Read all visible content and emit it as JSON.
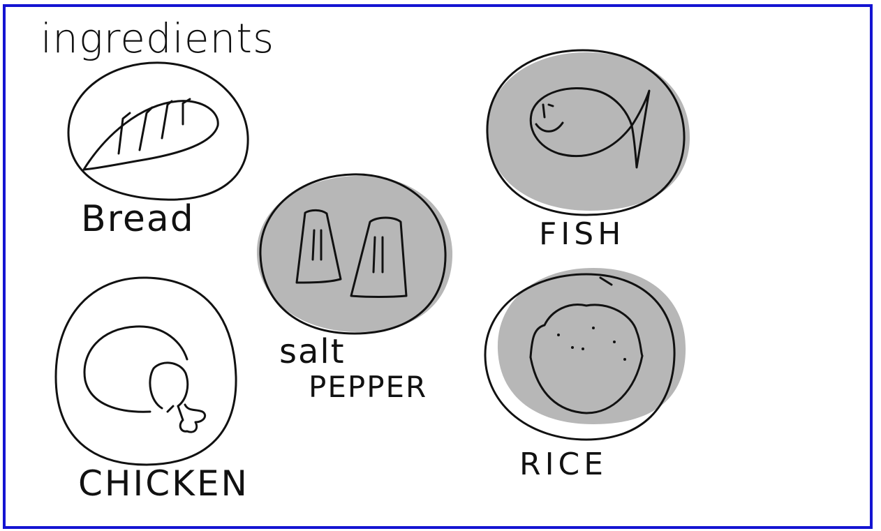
{
  "title": "ingredients",
  "colors": {
    "frame": "#1414d2",
    "ink": "#111111",
    "shade": "#b7b7b7",
    "background": "#ffffff"
  },
  "items": [
    {
      "label": "Bread",
      "icon": "bread-icon",
      "shaded": false
    },
    {
      "label": "salt",
      "icon": "salt-shaker-icon",
      "shaded": true
    },
    {
      "label": "PEPPER",
      "icon": "pepper-shaker-icon",
      "shaded": true
    },
    {
      "label": "FISH",
      "icon": "fish-icon",
      "shaded": true
    },
    {
      "label": "RICE",
      "icon": "rice-bowl-icon",
      "shaded": true
    },
    {
      "label": "CHICKEN",
      "icon": "chicken-icon",
      "shaded": false
    }
  ]
}
